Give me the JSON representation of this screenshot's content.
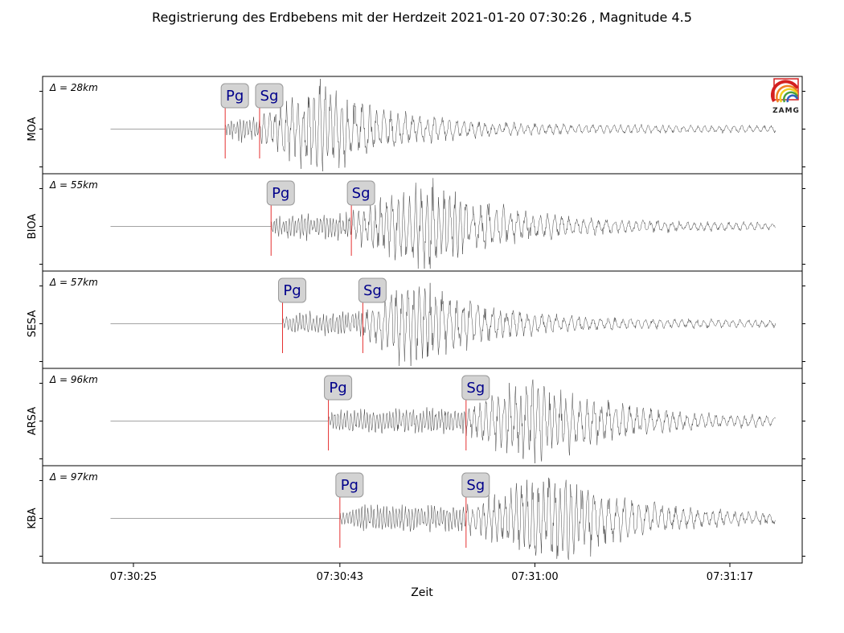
{
  "chart_data": {
    "type": "line",
    "title": "Registrierung des Erdbebens mit der Herdzeit 2021-01-20 07:30:26 , Magnitude 4.5",
    "xlabel": "Zeit",
    "xticks": [
      "07:30:25",
      "07:30:43",
      "07:31:00",
      "07:31:17"
    ],
    "x_range": [
      "07:30:17",
      "07:31:22"
    ],
    "logo_text": "ZAMG",
    "trace_color": "#333333",
    "pick_color": "#e53030",
    "label_color": "#00008b",
    "panels": [
      {
        "station": "MOA",
        "distance_label": "Δ = 28km",
        "signal_start": "07:30:23",
        "signal_end": "07:31:21",
        "picks": [
          {
            "phase": "Pg",
            "time": "07:30:33"
          },
          {
            "phase": "Sg",
            "time": "07:30:36"
          }
        ],
        "peak_time": "07:30:41",
        "amplitude_scale": 1.0
      },
      {
        "station": "BIOA",
        "distance_label": "Δ = 55km",
        "signal_start": "07:30:23",
        "signal_end": "07:31:21",
        "picks": [
          {
            "phase": "Pg",
            "time": "07:30:37"
          },
          {
            "phase": "Sg",
            "time": "07:30:44"
          }
        ],
        "peak_time": "07:30:51",
        "amplitude_scale": 1.0
      },
      {
        "station": "SESA",
        "distance_label": "Δ = 57km",
        "signal_start": "07:30:23",
        "signal_end": "07:31:21",
        "picks": [
          {
            "phase": "Pg",
            "time": "07:30:38"
          },
          {
            "phase": "Sg",
            "time": "07:30:45"
          }
        ],
        "peak_time": "07:30:49",
        "amplitude_scale": 1.0
      },
      {
        "station": "ARSA",
        "distance_label": "Δ = 96km",
        "signal_start": "07:30:23",
        "signal_end": "07:31:21",
        "picks": [
          {
            "phase": "Pg",
            "time": "07:30:42"
          },
          {
            "phase": "Sg",
            "time": "07:30:54"
          }
        ],
        "peak_time": "07:31:00",
        "amplitude_scale": 1.0
      },
      {
        "station": "KBA",
        "distance_label": "Δ = 97km",
        "signal_start": "07:30:23",
        "signal_end": "07:31:21",
        "picks": [
          {
            "phase": "Pg",
            "time": "07:30:43"
          },
          {
            "phase": "Sg",
            "time": "07:30:54"
          }
        ],
        "peak_time": "07:31:02",
        "amplitude_scale": 1.0
      }
    ]
  }
}
